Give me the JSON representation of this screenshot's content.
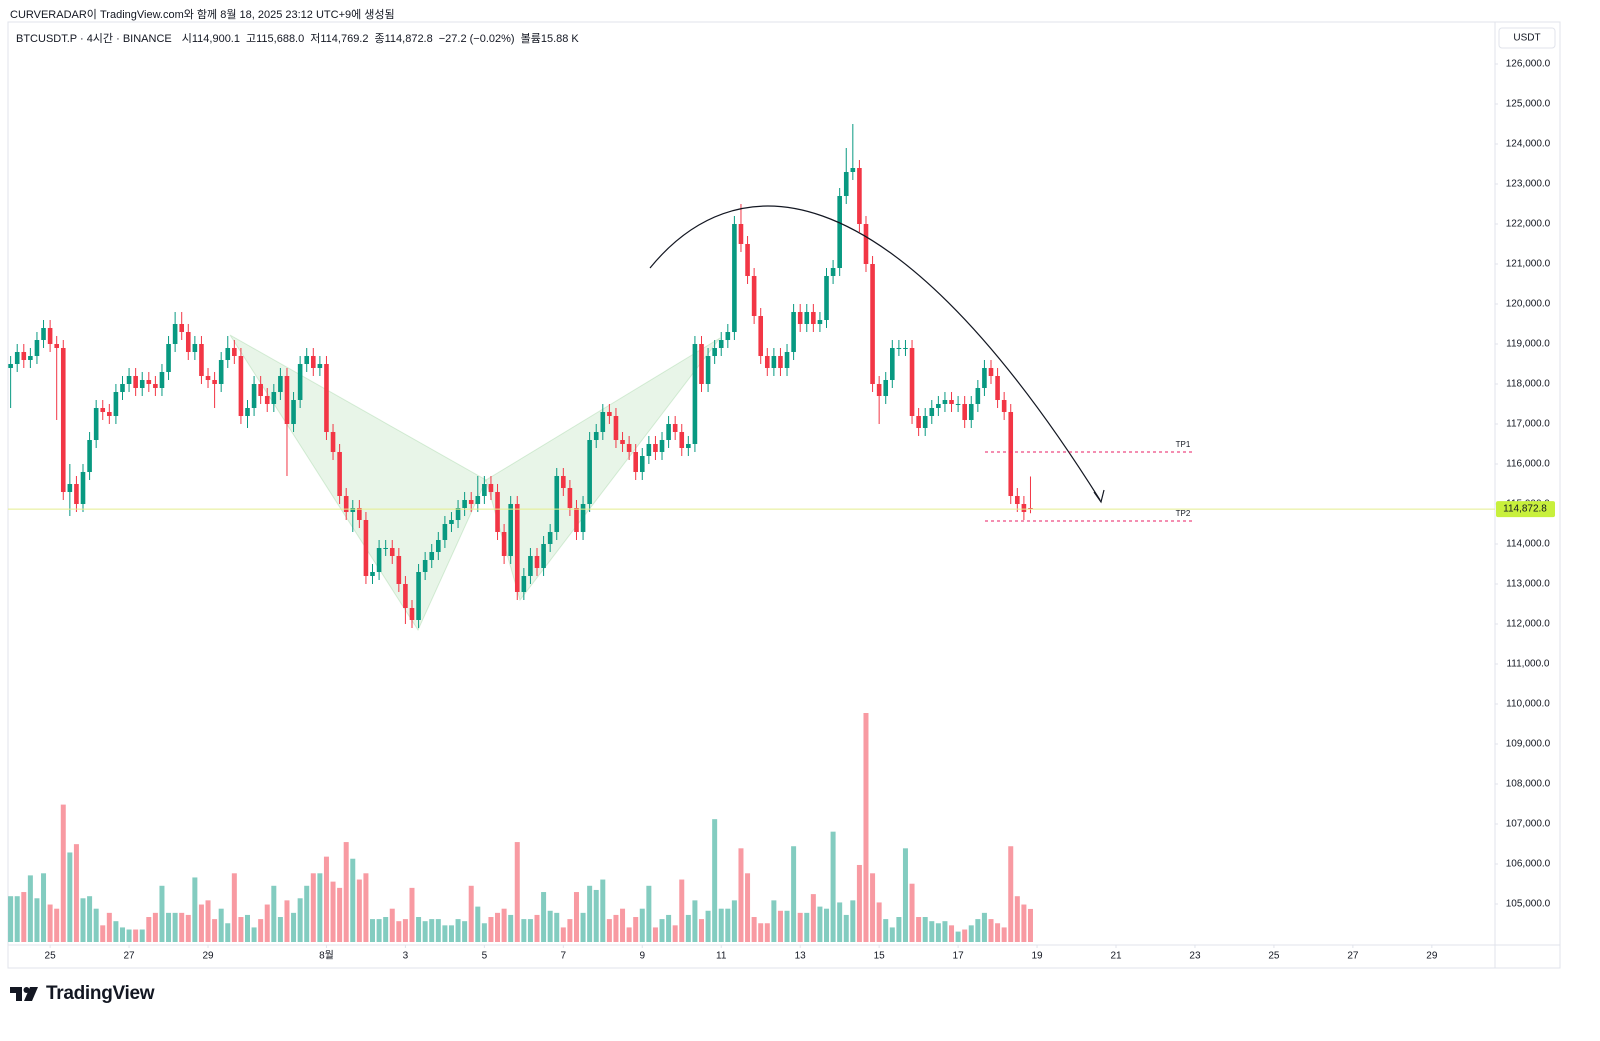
{
  "header": {
    "credit": "CURVERADAR이 TradingView.com와 함께 8월 18, 2025 23:12 UTC+9에 생성됨"
  },
  "chart_data": {
    "type": "candlestick",
    "title": "BTCUSDT.P · 4시간 · BINANCE",
    "legend_values": [
      {
        "label": "시",
        "text": "114,900.1"
      },
      {
        "label": "고",
        "text": "115,688.0"
      },
      {
        "label": "저",
        "text": "114,769.2"
      },
      {
        "label": "종",
        "text": "114,872.8"
      },
      {
        "label": "",
        "text": "−27.2 (−0.02%)"
      },
      {
        "label": "볼륨",
        "text": "15.88 K"
      }
    ],
    "currency": "USDT",
    "up_color": "#089981",
    "down_color": "#f23645",
    "open": [
      118400,
      118500,
      118800,
      118600,
      118700,
      119100,
      119400,
      119000,
      118900,
      115300,
      115500,
      115000,
      115800,
      116600,
      117400,
      117300,
      117200,
      117800,
      118000,
      118200,
      117900,
      118100,
      118000,
      117900,
      118300,
      119000,
      119500,
      119300,
      118800,
      119000,
      118200,
      118100,
      118000,
      118600,
      118900,
      118700,
      117200,
      117400,
      118000,
      117700,
      117500,
      117800,
      118200,
      117000,
      117600,
      118500,
      118700,
      118400,
      118500,
      116800,
      116300,
      115200,
      114800,
      114900,
      114600,
      113200,
      113300,
      113900,
      113900,
      113700,
      113000,
      112400,
      112100,
      113300,
      113600,
      113800,
      114100,
      114500,
      114600,
      114900,
      115100,
      115000,
      115200,
      115500,
      115300,
      114300,
      113700,
      115000,
      112800,
      113200,
      113700,
      113400,
      114000,
      114300,
      115700,
      115400,
      114900,
      114300,
      115000,
      116600,
      116800,
      117300,
      117200,
      116600,
      116500,
      116300,
      115800,
      116200,
      116500,
      116300,
      116600,
      117000,
      116800,
      116400,
      116500,
      119000,
      118000,
      118700,
      118900,
      119100,
      119300,
      122000,
      121500,
      120700,
      119700,
      118700,
      118400,
      118700,
      118400,
      118800,
      119800,
      119500,
      119800,
      119500,
      119600,
      120700,
      120900,
      122700,
      123300,
      123400,
      122000,
      121000,
      118000,
      117700,
      118100,
      118900,
      118900,
      118900,
      117200,
      116900,
      117200,
      117400,
      117500,
      117600,
      117500,
      117500,
      117100,
      117500,
      117900,
      118400,
      118200,
      117600,
      117300,
      115200,
      115000,
      114900.1
    ],
    "high": [
      118700,
      119000,
      119000,
      118900,
      119300,
      119600,
      119600,
      119200,
      119100,
      116000,
      115700,
      116000,
      116800,
      117600,
      117600,
      117500,
      118000,
      118200,
      118400,
      118400,
      118300,
      118300,
      118200,
      118500,
      119200,
      119800,
      119800,
      119500,
      119200,
      119200,
      118400,
      118300,
      118800,
      119200,
      119100,
      118900,
      117600,
      118200,
      118200,
      117900,
      118000,
      118400,
      118400,
      117800,
      118700,
      118900,
      118900,
      118700,
      118700,
      117000,
      116500,
      115400,
      115100,
      115100,
      114800,
      113500,
      114100,
      114100,
      114100,
      113900,
      113200,
      112600,
      113500,
      113800,
      114000,
      114300,
      114700,
      114800,
      115100,
      115300,
      115300,
      115700,
      115700,
      115700,
      115500,
      114500,
      115200,
      115200,
      113400,
      113900,
      113900,
      114200,
      114500,
      115900,
      115900,
      115600,
      115100,
      115200,
      116800,
      117000,
      117500,
      117500,
      117400,
      116800,
      116700,
      116500,
      116400,
      116700,
      116700,
      116800,
      117200,
      117200,
      117000,
      116700,
      119200,
      119200,
      118900,
      119100,
      119300,
      119500,
      122200,
      122500,
      121700,
      120900,
      119900,
      118900,
      118900,
      118900,
      119000,
      120000,
      120000,
      120000,
      120000,
      119800,
      120900,
      121100,
      122900,
      123900,
      124500,
      123600,
      122200,
      121200,
      118200,
      118300,
      119100,
      119100,
      119100,
      119100,
      117400,
      117400,
      117600,
      117700,
      117800,
      117800,
      117700,
      117700,
      117700,
      118100,
      118600,
      118600,
      118400,
      117800,
      117500,
      115400,
      115200,
      115688
    ],
    "low": [
      117400,
      118300,
      118400,
      118400,
      118500,
      118900,
      118800,
      117100,
      115100,
      114700,
      114800,
      114800,
      115600,
      116400,
      117100,
      117000,
      117000,
      117600,
      117800,
      117700,
      117700,
      117800,
      117700,
      117700,
      118100,
      118800,
      119100,
      118600,
      118600,
      118000,
      117900,
      117400,
      117800,
      118400,
      118500,
      117000,
      116900,
      117200,
      117500,
      117300,
      117300,
      117600,
      115700,
      116800,
      117400,
      118300,
      118200,
      118200,
      116600,
      116100,
      115000,
      114600,
      114300,
      114400,
      113000,
      113000,
      113100,
      113700,
      113500,
      112800,
      112000,
      111900,
      111900,
      113100,
      113400,
      113600,
      113900,
      114300,
      114400,
      114700,
      114800,
      114800,
      115000,
      115100,
      114100,
      113500,
      113500,
      112600,
      112600,
      113000,
      113200,
      113200,
      113800,
      114100,
      115200,
      114700,
      114100,
      114100,
      114800,
      116400,
      116600,
      117000,
      116400,
      116300,
      116100,
      115600,
      115600,
      116000,
      116100,
      116100,
      116400,
      116600,
      116200,
      116200,
      116300,
      117800,
      117800,
      118500,
      118700,
      118900,
      119100,
      121300,
      120500,
      119500,
      118500,
      118200,
      118200,
      118200,
      118200,
      118600,
      119300,
      119300,
      119300,
      119300,
      119400,
      120500,
      120700,
      122500,
      123100,
      121800,
      120800,
      117800,
      117000,
      117500,
      117900,
      118700,
      118700,
      117000,
      116700,
      116700,
      117000,
      117200,
      117300,
      117300,
      117300,
      116900,
      116900,
      117300,
      117700,
      118000,
      117400,
      117100,
      115000,
      114800,
      114600,
      114769.2
    ],
    "close": [
      118500,
      118800,
      118600,
      118700,
      119100,
      119400,
      119000,
      118900,
      115300,
      115500,
      115000,
      115800,
      116600,
      117400,
      117300,
      117200,
      117800,
      118000,
      118200,
      117900,
      118100,
      118000,
      117900,
      118300,
      119000,
      119500,
      119300,
      118800,
      119000,
      118200,
      118100,
      118000,
      118600,
      118900,
      118700,
      117200,
      117400,
      118000,
      117700,
      117500,
      117800,
      118200,
      117000,
      117600,
      118500,
      118700,
      118400,
      118500,
      116800,
      116300,
      115200,
      114800,
      114900,
      114600,
      113200,
      113300,
      113900,
      113900,
      113700,
      113000,
      112400,
      112100,
      113300,
      113600,
      113800,
      114100,
      114500,
      114600,
      114900,
      115100,
      115000,
      115200,
      115500,
      115300,
      114300,
      113700,
      115000,
      112800,
      113200,
      113700,
      113400,
      114000,
      114300,
      115700,
      115400,
      114900,
      114300,
      115000,
      116600,
      116800,
      117300,
      117200,
      116600,
      116500,
      116300,
      115800,
      116200,
      116500,
      116300,
      116600,
      117000,
      116800,
      116400,
      116500,
      119000,
      118000,
      118700,
      118900,
      119100,
      119300,
      122000,
      121500,
      120700,
      119700,
      118700,
      118400,
      118700,
      118400,
      118800,
      119800,
      119500,
      119800,
      119500,
      119600,
      120700,
      120900,
      122700,
      123300,
      123400,
      122000,
      121000,
      118000,
      117700,
      118100,
      118900,
      118900,
      118900,
      117200,
      116900,
      117200,
      117400,
      117500,
      117600,
      117500,
      117500,
      117100,
      117500,
      117900,
      118400,
      118200,
      117600,
      117300,
      115200,
      115000,
      114800,
      114872.8
    ],
    "volume": [
      22,
      22,
      24,
      32,
      21,
      33,
      18,
      16,
      66,
      43,
      47,
      21,
      22,
      16,
      8,
      14,
      10,
      7,
      6,
      6,
      6,
      12,
      14,
      27,
      14,
      14,
      14,
      13,
      31,
      18,
      20,
      11,
      16,
      9,
      33,
      12,
      13,
      7,
      11,
      18,
      27,
      12,
      20,
      14,
      21,
      27,
      33,
      33,
      41,
      29,
      26,
      48,
      40,
      30,
      33,
      11,
      11,
      12,
      16,
      10,
      11,
      26,
      12,
      10,
      11,
      11,
      8,
      8,
      11,
      10,
      27,
      17,
      9,
      12,
      14,
      16,
      13,
      48,
      11,
      11,
      13,
      24,
      15,
      14,
      7,
      11,
      24,
      14,
      27,
      25,
      30,
      11,
      13,
      16,
      7,
      12,
      16,
      27,
      7,
      11,
      13,
      8,
      30,
      13,
      20,
      11,
      15,
      59,
      16,
      16,
      20,
      45,
      33,
      12,
      9,
      9,
      20,
      15,
      15,
      46,
      14,
      14,
      23,
      17,
      16,
      53,
      19,
      13,
      20,
      37,
      110,
      33,
      19,
      11,
      7,
      12,
      45,
      28,
      12,
      12,
      10,
      9,
      10,
      8,
      5,
      6,
      8,
      11,
      14,
      11,
      9,
      7,
      46,
      22,
      18,
      15.88
    ],
    "xlim": [
      -0.4,
      225.6
    ],
    "xticks": [
      {
        "value": 6,
        "label": "25"
      },
      {
        "value": 18,
        "label": "27"
      },
      {
        "value": 30,
        "label": "29"
      },
      {
        "value": 48,
        "label": "8월"
      },
      {
        "value": 60,
        "label": "3"
      },
      {
        "value": 72,
        "label": "5"
      },
      {
        "value": 84,
        "label": "7"
      },
      {
        "value": 96,
        "label": "9"
      },
      {
        "value": 108,
        "label": "11"
      },
      {
        "value": 120,
        "label": "13"
      },
      {
        "value": 132,
        "label": "15"
      },
      {
        "value": 144,
        "label": "17"
      },
      {
        "value": 156,
        "label": "19"
      },
      {
        "value": 168,
        "label": "21"
      },
      {
        "value": 180,
        "label": "23"
      },
      {
        "value": 192,
        "label": "25"
      },
      {
        "value": 204,
        "label": "27"
      },
      {
        "value": 216,
        "label": "29"
      }
    ],
    "ylim": [
      104000,
      127000
    ],
    "yticks": [
      {
        "value": 126000,
        "label": "126,000.0"
      },
      {
        "value": 125000,
        "label": "125,000.0"
      },
      {
        "value": 124000,
        "label": "124,000.0"
      },
      {
        "value": 123000,
        "label": "123,000.0"
      },
      {
        "value": 122000,
        "label": "122,000.0"
      },
      {
        "value": 121000,
        "label": "121,000.0"
      },
      {
        "value": 120000,
        "label": "120,000.0"
      },
      {
        "value": 119000,
        "label": "119,000.0"
      },
      {
        "value": 118000,
        "label": "118,000.0"
      },
      {
        "value": 117000,
        "label": "117,000.0"
      },
      {
        "value": 116000,
        "label": "116,000.0"
      },
      {
        "value": 115000,
        "label": "115,000.0"
      },
      {
        "value": 114000,
        "label": "114,000.0"
      },
      {
        "value": 113000,
        "label": "113,000.0"
      },
      {
        "value": 112000,
        "label": "112,000.0"
      },
      {
        "value": 111000,
        "label": "111,000.0"
      },
      {
        "value": 110000,
        "label": "110,000.0"
      },
      {
        "value": 109000,
        "label": "109,000.0"
      },
      {
        "value": 108000,
        "label": "108,000.0"
      },
      {
        "value": 107000,
        "label": "107,000.0"
      },
      {
        "value": 106000,
        "label": "106,000.0"
      },
      {
        "value": 105000,
        "label": "105,000.0"
      }
    ],
    "last_price": {
      "value": 114872.8,
      "label": "114,872.8"
    },
    "annotations": [
      {
        "label": "TP1",
        "value": 116300
      },
      {
        "label": "TP2",
        "value": 114575
      }
    ]
  },
  "footer": {
    "logo": "TradingView"
  }
}
